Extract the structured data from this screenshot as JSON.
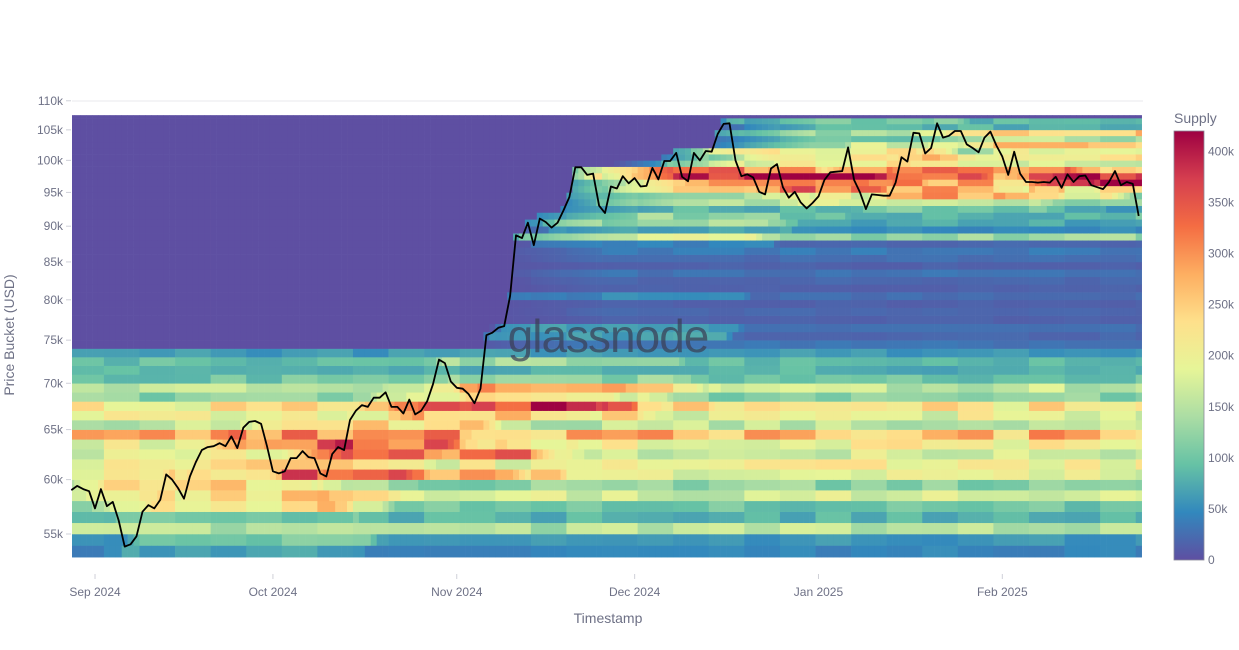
{
  "chart_data": {
    "type": "heatmap",
    "title": "",
    "watermark": "glassnode",
    "xlabel": "Timestamp",
    "ylabel": "Price Bucket (USD)",
    "y_scale": "log",
    "ylim": [
      53000,
      110000
    ],
    "y_ticks": [
      {
        "value": 55000,
        "label": "55k"
      },
      {
        "value": 60000,
        "label": "60k"
      },
      {
        "value": 65000,
        "label": "65k"
      },
      {
        "value": 70000,
        "label": "70k"
      },
      {
        "value": 75000,
        "label": "75k"
      },
      {
        "value": 80000,
        "label": "80k"
      },
      {
        "value": 85000,
        "label": "85k"
      },
      {
        "value": 90000,
        "label": "90k"
      },
      {
        "value": 95000,
        "label": "95k"
      },
      {
        "value": 100000,
        "label": "100k"
      },
      {
        "value": 105000,
        "label": "105k"
      },
      {
        "value": 110000,
        "label": "110k"
      }
    ],
    "x_start": "2024-08-28",
    "x_ticks": [
      {
        "day": 4,
        "label": "Sep 2024"
      },
      {
        "day": 34,
        "label": "Oct 2024"
      },
      {
        "day": 65,
        "label": "Nov 2024"
      },
      {
        "day": 95,
        "label": "Dec 2024"
      },
      {
        "day": 126,
        "label": "Jan 2025"
      },
      {
        "day": 157,
        "label": "Feb 2025"
      }
    ],
    "colorbar": {
      "title": "Supply",
      "range": [
        0,
        420000
      ],
      "ticks": [
        {
          "value": 0,
          "label": "0"
        },
        {
          "value": 50000,
          "label": "50k"
        },
        {
          "value": 100000,
          "label": "100k"
        },
        {
          "value": 150000,
          "label": "150k"
        },
        {
          "value": 200000,
          "label": "200k"
        },
        {
          "value": 250000,
          "label": "250k"
        },
        {
          "value": 300000,
          "label": "300k"
        },
        {
          "value": 350000,
          "label": "350k"
        },
        {
          "value": 400000,
          "label": "400k"
        }
      ],
      "colors": [
        "#5e4fa2",
        "#3288bd",
        "#66c2a5",
        "#abdda4",
        "#e6f598",
        "#fee08b",
        "#fdae61",
        "#f46d43",
        "#d53e4f",
        "#9e0142"
      ]
    },
    "bucket_size": 1000,
    "bucket_low": [
      53000,
      54000,
      55000,
      56000,
      57000,
      58000,
      59000,
      60000,
      61000,
      62000,
      63000,
      64000,
      65000,
      66000,
      67000,
      68000,
      69000,
      70000,
      71000,
      72000,
      73000,
      74000,
      75000,
      76000,
      77000,
      78000,
      79000,
      80000,
      81000,
      82000,
      83000,
      84000,
      85000,
      86000,
      87000,
      88000,
      89000,
      90000,
      91000,
      92000,
      93000,
      94000,
      95000,
      96000,
      97000,
      98000,
      99000,
      100000,
      101000,
      102000,
      103000,
      104000,
      105000,
      106000,
      107000
    ],
    "bucket_base_supply_k": [
      45,
      60,
      150,
      80,
      100,
      170,
      120,
      190,
      200,
      170,
      200,
      270,
      150,
      190,
      220,
      120,
      160,
      100,
      80,
      90,
      60,
      30,
      20,
      25,
      15,
      20,
      15,
      25,
      15,
      20,
      30,
      15,
      25,
      35,
      20,
      130,
      50,
      70,
      85,
      60,
      130,
      110,
      180,
      200,
      300,
      230,
      160,
      170,
      120,
      140,
      100,
      110,
      80,
      60,
      45
    ],
    "price_line": {
      "name": "BTC Price",
      "color": "#000000",
      "values_k": [
        59.0,
        59.4,
        59.1,
        58.9,
        57.3,
        59.1,
        57.5,
        57.9,
        56.2,
        53.9,
        54.1,
        54.8,
        57.0,
        57.6,
        57.3,
        58.1,
        60.5,
        60.0,
        59.2,
        58.2,
        60.3,
        61.7,
        62.9,
        63.2,
        63.3,
        63.6,
        63.3,
        64.3,
        63.1,
        65.2,
        65.8,
        65.9,
        65.6,
        63.3,
        60.8,
        60.6,
        60.8,
        62.1,
        62.1,
        62.8,
        62.2,
        62.1,
        60.6,
        60.3,
        62.5,
        63.2,
        62.9,
        66.0,
        67.0,
        67.6,
        67.4,
        68.4,
        68.4,
        69.0,
        67.4,
        67.4,
        66.7,
        68.2,
        66.6,
        67.0,
        68.0,
        69.9,
        72.7,
        72.3,
        70.2,
        69.5,
        69.4,
        68.8,
        67.8,
        69.4,
        75.6,
        75.9,
        76.5,
        76.7,
        80.5,
        88.7,
        88.3,
        90.5,
        87.3,
        91.1,
        90.6,
        89.8,
        90.5,
        92.3,
        94.3,
        98.9,
        98.9,
        97.7,
        97.9,
        93.0,
        91.9,
        95.9,
        95.6,
        97.5,
        96.4,
        97.2,
        95.9,
        96.0,
        98.8,
        97.0,
        99.9,
        99.9,
        101.2,
        97.4,
        96.7,
        101.2,
        100.0,
        101.5,
        101.4,
        104.3,
        106.0,
        106.1,
        100.0,
        97.5,
        97.8,
        97.3,
        95.1,
        94.7,
        98.7,
        99.4,
        95.8,
        94.2,
        95.1,
        93.5,
        92.6,
        93.4,
        94.4,
        96.9,
        98.1,
        98.2,
        98.3,
        102.1,
        96.9,
        95.0,
        92.5,
        94.7,
        94.6,
        94.5,
        94.5,
        96.5,
        100.5,
        99.8,
        104.5,
        104.4,
        101.1,
        102.0,
        106.1,
        103.7,
        104.0,
        104.8,
        104.8,
        102.6,
        102.0,
        101.3,
        103.7,
        104.7,
        102.4,
        100.6,
        97.7,
        101.4,
        97.9,
        96.6,
        96.6,
        96.5,
        96.6,
        96.5,
        97.4,
        95.7,
        97.8,
        96.6,
        97.5,
        97.6,
        96.1,
        95.8,
        95.5,
        96.6,
        98.3,
        96.1,
        96.6,
        96.3,
        91.5
      ]
    },
    "grid": true,
    "legend": "colorbar-right"
  }
}
